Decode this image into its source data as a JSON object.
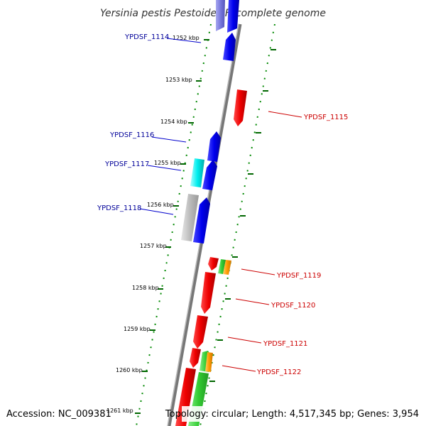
{
  "title": "Yersinia pestis Pestoides F, complete genome",
  "accession": "Accession: NC_009381",
  "topology": "Topology: circular; Length: 4,517,345 bp; Genes: 3,954",
  "colors": {
    "forward": "#0000ee",
    "reverse": "#ee0000",
    "forward_label": "#000099",
    "reverse_label": "#cc0000",
    "backbone": "#888888",
    "ruler": "#006600"
  },
  "ruler_labels": [
    "1252 kbp",
    "1253 kbp",
    "1254 kbp",
    "1255 kbp",
    "1256 kbp",
    "1257 kbp",
    "1258 kbp",
    "1259 kbp",
    "1260 kbp",
    "1261 kbp"
  ],
  "gene_labels_forward": [
    "YPDSF_1114",
    "YPDSF_1116",
    "YPDSF_1117",
    "YPDSF_1118"
  ],
  "gene_labels_reverse": [
    "YPDSF_1115",
    "YPDSF_1119",
    "YPDSF_1120",
    "YPDSF_1121",
    "YPDSF_1122"
  ]
}
